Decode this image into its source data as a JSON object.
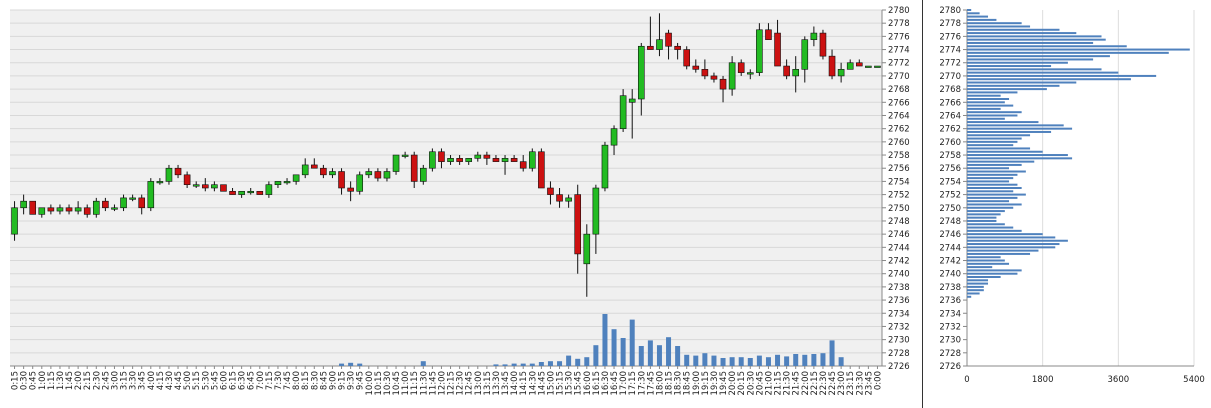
{
  "chart_data": [
    {
      "type": "candlestick",
      "price_axis": {
        "min": 2726,
        "max": 2780,
        "step": 2,
        "position": "right"
      },
      "time_axis": {
        "labels": [
          "0:15",
          "0:30",
          "0:45",
          "1:00",
          "1:15",
          "1:30",
          "1:45",
          "2:00",
          "2:15",
          "2:30",
          "2:45",
          "3:00",
          "3:15",
          "3:30",
          "3:45",
          "4:00",
          "4:15",
          "4:30",
          "4:45",
          "5:00",
          "5:15",
          "5:30",
          "5:45",
          "6:00",
          "6:15",
          "6:30",
          "6:45",
          "7:00",
          "7:15",
          "7:30",
          "7:45",
          "8:00",
          "8:15",
          "8:30",
          "8:45",
          "9:00",
          "9:15",
          "9:30",
          "9:45",
          "10:00",
          "10:15",
          "10:30",
          "10:45",
          "11:00",
          "11:15",
          "11:30",
          "11:45",
          "12:00",
          "12:15",
          "12:30",
          "12:45",
          "13:00",
          "13:15",
          "13:30",
          "13:45",
          "14:00",
          "14:15",
          "14:30",
          "14:45",
          "15:00",
          "15:15",
          "15:30",
          "15:45",
          "16:00",
          "16:15",
          "16:30",
          "16:45",
          "17:00",
          "17:15",
          "17:30",
          "17:45",
          "18:00",
          "18:15",
          "18:30",
          "18:45",
          "19:00",
          "19:15",
          "19:30",
          "19:45",
          "20:00",
          "20:15",
          "20:30",
          "20:45",
          "21:00",
          "21:15",
          "21:30",
          "21:45",
          "22:00",
          "22:15",
          "22:30",
          "22:45",
          "23:00",
          "23:15",
          "23:30",
          "23:45",
          "0:00"
        ]
      },
      "grid": true,
      "colors": {
        "up": "#22bb22",
        "down": "#cc1111",
        "volume": "#4f81bd",
        "plot_bg": "#f0f0f0",
        "grid": "#d8d8d8"
      },
      "candles": [
        {
          "o": 2746,
          "h": 2751,
          "l": 2745,
          "c": 2750
        },
        {
          "o": 2750,
          "h": 2752,
          "l": 2749,
          "c": 2751
        },
        {
          "o": 2751,
          "h": 2751,
          "l": 2749,
          "c": 2749
        },
        {
          "o": 2749,
          "h": 2750,
          "l": 2748.5,
          "c": 2750
        },
        {
          "o": 2750,
          "h": 2750.5,
          "l": 2749,
          "c": 2749.5
        },
        {
          "o": 2749.5,
          "h": 2750.5,
          "l": 2749,
          "c": 2750
        },
        {
          "o": 2750,
          "h": 2750.5,
          "l": 2749,
          "c": 2749.5
        },
        {
          "o": 2749.5,
          "h": 2751,
          "l": 2749,
          "c": 2750
        },
        {
          "o": 2750,
          "h": 2750.5,
          "l": 2748.5,
          "c": 2749
        },
        {
          "o": 2749,
          "h": 2751.5,
          "l": 2748.5,
          "c": 2751
        },
        {
          "o": 2751,
          "h": 2751.5,
          "l": 2749.5,
          "c": 2750
        },
        {
          "o": 2750,
          "h": 2750.5,
          "l": 2749.5,
          "c": 2750
        },
        {
          "o": 2750,
          "h": 2752,
          "l": 2749.5,
          "c": 2751.5
        },
        {
          "o": 2751.5,
          "h": 2752,
          "l": 2751,
          "c": 2751.5
        },
        {
          "o": 2751.5,
          "h": 2752,
          "l": 2749,
          "c": 2750
        },
        {
          "o": 2750,
          "h": 2754.5,
          "l": 2749.5,
          "c": 2754
        },
        {
          "o": 2754,
          "h": 2754.5,
          "l": 2753.5,
          "c": 2754
        },
        {
          "o": 2754,
          "h": 2756.5,
          "l": 2753.5,
          "c": 2756
        },
        {
          "o": 2756,
          "h": 2756.5,
          "l": 2754.5,
          "c": 2755
        },
        {
          "o": 2755,
          "h": 2755.5,
          "l": 2753,
          "c": 2753.5
        },
        {
          "o": 2753.5,
          "h": 2754,
          "l": 2753,
          "c": 2753.5
        },
        {
          "o": 2753.5,
          "h": 2754.5,
          "l": 2752.5,
          "c": 2753
        },
        {
          "o": 2753,
          "h": 2754,
          "l": 2752.5,
          "c": 2753.5
        },
        {
          "o": 2753.5,
          "h": 2753.5,
          "l": 2752.5,
          "c": 2752.5
        },
        {
          "o": 2752.5,
          "h": 2753,
          "l": 2752,
          "c": 2752
        },
        {
          "o": 2752,
          "h": 2752.5,
          "l": 2751.5,
          "c": 2752.5
        },
        {
          "o": 2752.5,
          "h": 2753,
          "l": 2752,
          "c": 2752.5
        },
        {
          "o": 2752.5,
          "h": 2752.5,
          "l": 2752,
          "c": 2752
        },
        {
          "o": 2752,
          "h": 2754,
          "l": 2751.5,
          "c": 2753.5
        },
        {
          "o": 2753.5,
          "h": 2754,
          "l": 2753,
          "c": 2754
        },
        {
          "o": 2754,
          "h": 2754.5,
          "l": 2753.5,
          "c": 2754
        },
        {
          "o": 2754,
          "h": 2755,
          "l": 2753.5,
          "c": 2755
        },
        {
          "o": 2755,
          "h": 2757.5,
          "l": 2754.5,
          "c": 2756.5
        },
        {
          "o": 2756.5,
          "h": 2757.5,
          "l": 2756,
          "c": 2756
        },
        {
          "o": 2756,
          "h": 2756.5,
          "l": 2754.5,
          "c": 2755
        },
        {
          "o": 2755,
          "h": 2756,
          "l": 2754.5,
          "c": 2755.5
        },
        {
          "o": 2755.5,
          "h": 2756,
          "l": 2752,
          "c": 2753
        },
        {
          "o": 2753,
          "h": 2754,
          "l": 2751,
          "c": 2752.5
        },
        {
          "o": 2752.5,
          "h": 2755.5,
          "l": 2752,
          "c": 2755
        },
        {
          "o": 2755,
          "h": 2756,
          "l": 2754.5,
          "c": 2755.5
        },
        {
          "o": 2755.5,
          "h": 2756,
          "l": 2754,
          "c": 2754.5
        },
        {
          "o": 2754.5,
          "h": 2756,
          "l": 2754,
          "c": 2755.5
        },
        {
          "o": 2755.5,
          "h": 2758,
          "l": 2755,
          "c": 2758
        },
        {
          "o": 2758,
          "h": 2758.5,
          "l": 2757.5,
          "c": 2758
        },
        {
          "o": 2758,
          "h": 2758.5,
          "l": 2753,
          "c": 2754
        },
        {
          "o": 2754,
          "h": 2756.5,
          "l": 2753.5,
          "c": 2756
        },
        {
          "o": 2756,
          "h": 2759,
          "l": 2755.5,
          "c": 2758.5
        },
        {
          "o": 2758.5,
          "h": 2759,
          "l": 2756,
          "c": 2757
        },
        {
          "o": 2757,
          "h": 2758,
          "l": 2756.5,
          "c": 2757.5
        },
        {
          "o": 2757.5,
          "h": 2758,
          "l": 2756.5,
          "c": 2757
        },
        {
          "o": 2757,
          "h": 2757.5,
          "l": 2756.5,
          "c": 2757.5
        },
        {
          "o": 2757.5,
          "h": 2758.5,
          "l": 2757,
          "c": 2758
        },
        {
          "o": 2758,
          "h": 2758.5,
          "l": 2756.5,
          "c": 2757.5
        },
        {
          "o": 2757.5,
          "h": 2758,
          "l": 2757,
          "c": 2757
        },
        {
          "o": 2757,
          "h": 2758,
          "l": 2755,
          "c": 2757.5
        },
        {
          "o": 2757.5,
          "h": 2758,
          "l": 2757,
          "c": 2757
        },
        {
          "o": 2757,
          "h": 2758,
          "l": 2755.5,
          "c": 2756
        },
        {
          "o": 2756,
          "h": 2759,
          "l": 2755.5,
          "c": 2758.5
        },
        {
          "o": 2758.5,
          "h": 2759,
          "l": 2753,
          "c": 2753
        },
        {
          "o": 2753,
          "h": 2754,
          "l": 2750.5,
          "c": 2752
        },
        {
          "o": 2752,
          "h": 2753,
          "l": 2750,
          "c": 2751
        },
        {
          "o": 2751,
          "h": 2752,
          "l": 2750,
          "c": 2751.5
        },
        {
          "o": 2752,
          "h": 2753.5,
          "l": 2740,
          "c": 2743
        },
        {
          "o": 2741.5,
          "h": 2747.5,
          "l": 2736.5,
          "c": 2746
        },
        {
          "o": 2746,
          "h": 2753.5,
          "l": 2743,
          "c": 2753
        },
        {
          "o": 2753,
          "h": 2760,
          "l": 2752.5,
          "c": 2759.5
        },
        {
          "o": 2759.5,
          "h": 2762.5,
          "l": 2758,
          "c": 2762
        },
        {
          "o": 2762,
          "h": 2768,
          "l": 2761.5,
          "c": 2767
        },
        {
          "o": 2766,
          "h": 2768,
          "l": 2760.5,
          "c": 2766.5
        },
        {
          "o": 2766.5,
          "h": 2775,
          "l": 2764,
          "c": 2774.5
        },
        {
          "o": 2774.5,
          "h": 2779,
          "l": 2774,
          "c": 2774
        },
        {
          "o": 2774,
          "h": 2779.5,
          "l": 2773,
          "c": 2775.5
        },
        {
          "o": 2776.5,
          "h": 2777,
          "l": 2772.5,
          "c": 2774.5
        },
        {
          "o": 2774.5,
          "h": 2775,
          "l": 2772.5,
          "c": 2774
        },
        {
          "o": 2774,
          "h": 2774.5,
          "l": 2771,
          "c": 2771.5
        },
        {
          "o": 2771.5,
          "h": 2772.5,
          "l": 2770.5,
          "c": 2771
        },
        {
          "o": 2771,
          "h": 2772.5,
          "l": 2769.5,
          "c": 2770
        },
        {
          "o": 2770,
          "h": 2770.5,
          "l": 2769,
          "c": 2769.5
        },
        {
          "o": 2769.5,
          "h": 2770,
          "l": 2766,
          "c": 2768
        },
        {
          "o": 2768,
          "h": 2773,
          "l": 2767,
          "c": 2772
        },
        {
          "o": 2772,
          "h": 2772.5,
          "l": 2770,
          "c": 2770.5
        },
        {
          "o": 2770.5,
          "h": 2771,
          "l": 2769.5,
          "c": 2770.5
        },
        {
          "o": 2770.5,
          "h": 2778,
          "l": 2770,
          "c": 2777
        },
        {
          "o": 2777,
          "h": 2778,
          "l": 2775.5,
          "c": 2775.5
        },
        {
          "o": 2776.5,
          "h": 2778.5,
          "l": 2771.5,
          "c": 2771.5
        },
        {
          "o": 2771.5,
          "h": 2772.5,
          "l": 2769.5,
          "c": 2770
        },
        {
          "o": 2770,
          "h": 2773,
          "l": 2767.5,
          "c": 2771
        },
        {
          "o": 2771,
          "h": 2776,
          "l": 2769,
          "c": 2775.5
        },
        {
          "o": 2775.5,
          "h": 2777.5,
          "l": 2774.5,
          "c": 2776.5
        },
        {
          "o": 2776.5,
          "h": 2777,
          "l": 2772.5,
          "c": 2773
        },
        {
          "o": 2773,
          "h": 2774,
          "l": 2769.5,
          "c": 2770
        },
        {
          "o": 2770,
          "h": 2772,
          "l": 2769,
          "c": 2771
        },
        {
          "o": 2771,
          "h": 2772.5,
          "l": 2771,
          "c": 2772
        },
        {
          "o": 2772,
          "h": 2772.5,
          "l": 2771.5,
          "c": 2771.5
        },
        {
          "o": 2771.5,
          "h": 2771.5,
          "l": 2771.5,
          "c": 2771.5
        },
        {
          "o": 2771.5,
          "h": 2771.5,
          "l": 2771.5,
          "c": 2771.5
        }
      ],
      "volume": [
        0,
        0,
        0,
        0,
        0,
        0,
        0,
        0,
        0,
        0,
        0,
        0,
        0,
        0,
        0,
        0,
        0,
        0,
        0,
        0,
        0,
        0,
        0,
        0,
        0,
        0,
        0,
        0,
        0,
        0,
        0,
        0,
        0,
        0,
        0,
        0,
        0.3,
        0.4,
        0.3,
        0,
        0,
        0,
        0,
        0,
        0,
        0.6,
        0,
        0,
        0,
        0,
        0,
        0,
        0,
        0.2,
        0.2,
        0.3,
        0.3,
        0.3,
        0.5,
        0.6,
        0.6,
        1.3,
        0.9,
        1.1,
        2.6,
        6.5,
        4.6,
        3.5,
        5.8,
        2.5,
        3.2,
        2.6,
        3.6,
        2.5,
        1.4,
        1.3,
        1.6,
        1.3,
        1.0,
        1.1,
        1.1,
        1.0,
        1.3,
        1.1,
        1.4,
        1.2,
        1.5,
        1.4,
        1.5,
        1.6,
        3.2,
        1.1,
        0,
        0,
        0,
        0
      ],
      "volume_scale_max": 10
    },
    {
      "type": "volume_profile",
      "price_axis": {
        "min": 2726,
        "max": 2780,
        "step": 2,
        "position": "left"
      },
      "x_axis": {
        "ticks": [
          0,
          1800,
          3600,
          5400
        ],
        "max": 5400,
        "position": "bottom"
      },
      "bar_color": "#4f81bd",
      "levels": [
        {
          "p": 2780,
          "v": 100
        },
        {
          "p": 2779.5,
          "v": 300
        },
        {
          "p": 2779,
          "v": 500
        },
        {
          "p": 2778.5,
          "v": 700
        },
        {
          "p": 2778,
          "v": 1300
        },
        {
          "p": 2777.5,
          "v": 1500
        },
        {
          "p": 2777,
          "v": 2200
        },
        {
          "p": 2776.5,
          "v": 2600
        },
        {
          "p": 2776,
          "v": 3200
        },
        {
          "p": 2775.5,
          "v": 3300
        },
        {
          "p": 2775,
          "v": 3000
        },
        {
          "p": 2774.5,
          "v": 3800
        },
        {
          "p": 2774,
          "v": 5300
        },
        {
          "p": 2773.5,
          "v": 4800
        },
        {
          "p": 2773,
          "v": 3400
        },
        {
          "p": 2772.5,
          "v": 3000
        },
        {
          "p": 2772,
          "v": 2400
        },
        {
          "p": 2771.5,
          "v": 2000
        },
        {
          "p": 2771,
          "v": 3200
        },
        {
          "p": 2770.5,
          "v": 3600
        },
        {
          "p": 2770,
          "v": 4500
        },
        {
          "p": 2769.5,
          "v": 3900
        },
        {
          "p": 2769,
          "v": 2600
        },
        {
          "p": 2768.5,
          "v": 2200
        },
        {
          "p": 2768,
          "v": 1900
        },
        {
          "p": 2767.5,
          "v": 1200
        },
        {
          "p": 2767,
          "v": 800
        },
        {
          "p": 2766.5,
          "v": 1000
        },
        {
          "p": 2766,
          "v": 900
        },
        {
          "p": 2765.5,
          "v": 1100
        },
        {
          "p": 2765,
          "v": 800
        },
        {
          "p": 2764.5,
          "v": 1300
        },
        {
          "p": 2764,
          "v": 1200
        },
        {
          "p": 2763.5,
          "v": 900
        },
        {
          "p": 2763,
          "v": 1700
        },
        {
          "p": 2762.5,
          "v": 2300
        },
        {
          "p": 2762,
          "v": 2500
        },
        {
          "p": 2761.5,
          "v": 2000
        },
        {
          "p": 2761,
          "v": 1500
        },
        {
          "p": 2760.5,
          "v": 1300
        },
        {
          "p": 2760,
          "v": 1200
        },
        {
          "p": 2759.5,
          "v": 1100
        },
        {
          "p": 2759,
          "v": 1500
        },
        {
          "p": 2758.5,
          "v": 1800
        },
        {
          "p": 2758,
          "v": 2400
        },
        {
          "p": 2757.5,
          "v": 2500
        },
        {
          "p": 2757,
          "v": 1600
        },
        {
          "p": 2756.5,
          "v": 1300
        },
        {
          "p": 2756,
          "v": 1000
        },
        {
          "p": 2755.5,
          "v": 1400
        },
        {
          "p": 2755,
          "v": 1200
        },
        {
          "p": 2754.5,
          "v": 1100
        },
        {
          "p": 2754,
          "v": 1000
        },
        {
          "p": 2753.5,
          "v": 1200
        },
        {
          "p": 2753,
          "v": 1300
        },
        {
          "p": 2752.5,
          "v": 1100
        },
        {
          "p": 2752,
          "v": 1400
        },
        {
          "p": 2751.5,
          "v": 1200
        },
        {
          "p": 2751,
          "v": 1000
        },
        {
          "p": 2750.5,
          "v": 1300
        },
        {
          "p": 2750,
          "v": 1100
        },
        {
          "p": 2749.5,
          "v": 900
        },
        {
          "p": 2749,
          "v": 800
        },
        {
          "p": 2748.5,
          "v": 700
        },
        {
          "p": 2748,
          "v": 700
        },
        {
          "p": 2747.5,
          "v": 900
        },
        {
          "p": 2747,
          "v": 1100
        },
        {
          "p": 2746.5,
          "v": 1300
        },
        {
          "p": 2746,
          "v": 1800
        },
        {
          "p": 2745.5,
          "v": 2100
        },
        {
          "p": 2745,
          "v": 2400
        },
        {
          "p": 2744.5,
          "v": 2200
        },
        {
          "p": 2744,
          "v": 2100
        },
        {
          "p": 2743.5,
          "v": 1700
        },
        {
          "p": 2743,
          "v": 1500
        },
        {
          "p": 2742.5,
          "v": 800
        },
        {
          "p": 2742,
          "v": 900
        },
        {
          "p": 2741.5,
          "v": 1000
        },
        {
          "p": 2741,
          "v": 600
        },
        {
          "p": 2740.5,
          "v": 1300
        },
        {
          "p": 2740,
          "v": 1200
        },
        {
          "p": 2739.5,
          "v": 800
        },
        {
          "p": 2739,
          "v": 500
        },
        {
          "p": 2738.5,
          "v": 500
        },
        {
          "p": 2738,
          "v": 400
        },
        {
          "p": 2737.5,
          "v": 400
        },
        {
          "p": 2737,
          "v": 300
        },
        {
          "p": 2736.5,
          "v": 100
        }
      ]
    }
  ]
}
